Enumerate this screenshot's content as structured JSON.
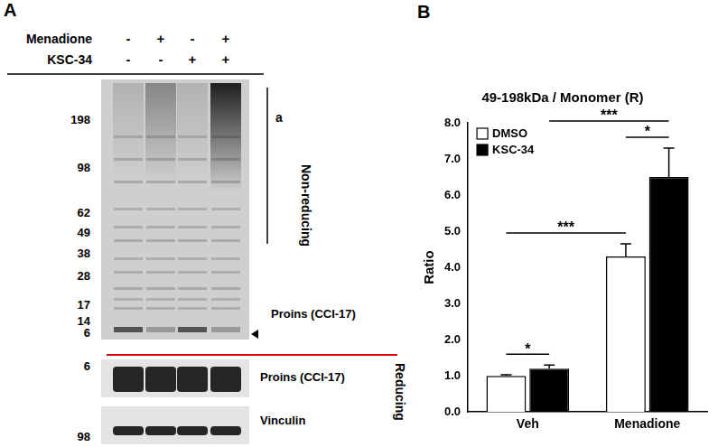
{
  "chart_data": {
    "type": "bar",
    "title": "49-198kDa / Monomer (R)",
    "y_label": "Ratio",
    "categories": [
      "Veh",
      "Menadione"
    ],
    "series": [
      {
        "name": "DMSO",
        "color": "#ffffff",
        "values": [
          1.0,
          4.3
        ],
        "errors": [
          0.03,
          0.35
        ]
      },
      {
        "name": "KSC-34",
        "color": "#000000",
        "values": [
          1.2,
          6.5
        ],
        "errors": [
          0.1,
          0.8
        ]
      }
    ],
    "ylim": [
      0,
      8
    ],
    "yticks": [
      {
        "value": 0,
        "label": "0.0"
      },
      {
        "value": 1,
        "label": "1.0"
      },
      {
        "value": 2,
        "label": "2.0"
      },
      {
        "value": 3,
        "label": "3.0"
      },
      {
        "value": 4,
        "label": "4.0"
      },
      {
        "value": 5,
        "label": "5.0"
      },
      {
        "value": 6,
        "label": "6.0"
      },
      {
        "value": 7,
        "label": "7.0"
      },
      {
        "value": 8,
        "label": "8.0"
      }
    ],
    "grid": false,
    "legend": "upper left",
    "annotations": [
      {
        "text": "*",
        "from": [
          "DMSO",
          "Veh"
        ],
        "to": [
          "KSC-34",
          "Veh"
        ]
      },
      {
        "text": "***",
        "from": [
          "DMSO",
          "Veh"
        ],
        "to": [
          "DMSO",
          "Menadione"
        ]
      },
      {
        "text": "*",
        "from": [
          "DMSO",
          "Menadione"
        ],
        "to": [
          "KSC-34",
          "Menadione"
        ]
      },
      {
        "text": "***",
        "from": [
          "KSC-34",
          "Veh"
        ],
        "to": [
          "KSC-34",
          "Menadione"
        ]
      }
    ]
  },
  "panel_b": {
    "label": "B"
  },
  "panel_a": {
    "label": "A",
    "treatments": [
      {
        "name": "Menadione",
        "lanes": [
          "-",
          "+",
          "-",
          "+"
        ]
      },
      {
        "name": "KSC-34",
        "lanes": [
          "-",
          "-",
          "+",
          "+"
        ]
      }
    ],
    "non_reducing": {
      "condition": "Non-reducing",
      "markers": [
        198,
        98,
        62,
        49,
        38,
        28,
        17,
        14,
        6
      ],
      "bracket_label": "a",
      "band_label": "Proins (CCI-17)"
    },
    "reducing": {
      "condition": "Reducing",
      "blots": [
        {
          "label": "Proins (CCI-17)",
          "marker": 6
        },
        {
          "label": "Vinculin",
          "marker": 98
        }
      ]
    }
  }
}
